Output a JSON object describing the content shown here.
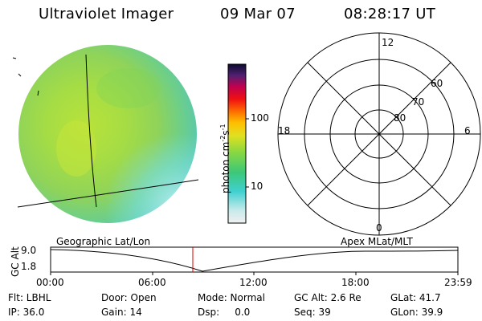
{
  "header": {
    "title": "Ultraviolet Imager",
    "date": "09 Mar 07",
    "time": "08:28:17 UT"
  },
  "colorbar": {
    "unit": "photon cm",
    "unit_sup1": "-2",
    "unit_mid": "s",
    "unit_sup2": "-1",
    "tick_100": "100",
    "tick_10": "10"
  },
  "polar_plot": {
    "mlt_top": "12",
    "mlt_left": "18",
    "mlt_right": "6",
    "mlt_bottom": "0",
    "lat_60": "60",
    "lat_70": "70",
    "lat_80": "80"
  },
  "timeline": {
    "left_label": "Geographic Lat/Lon",
    "right_label": "Apex MLat/MLT",
    "axis_label": "GC Alt",
    "y_max": "9.0",
    "y_min": "1.8",
    "x_ticks": [
      "00:00",
      "06:00",
      "12:00",
      "18:00",
      "23:59"
    ]
  },
  "info": {
    "filter": "Flt: LBHL",
    "door": "Door: Open",
    "mode": "Mode: Normal",
    "gc_alt": "GC Alt: 2.6 Re",
    "glat": "GLat: 41.7",
    "ip": "IP: 36.0",
    "gain": "Gain: 14",
    "dsp": "Dsp:     0.0",
    "seq": "Seq: 39",
    "glon": "GLon: 39.9"
  }
}
